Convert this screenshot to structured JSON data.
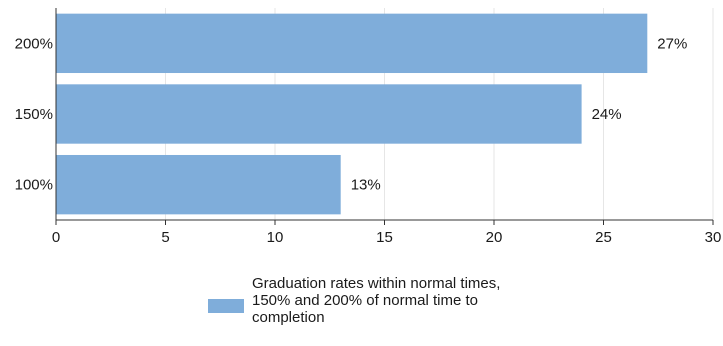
{
  "chart_data": {
    "type": "bar",
    "orientation": "horizontal",
    "categories": [
      "200%",
      "150%",
      "100%"
    ],
    "series": [
      {
        "name": "Graduation rates within normal times, 150% and 200% of normal time to completion",
        "values": [
          27,
          24,
          13
        ],
        "labels": [
          "27%",
          "24%",
          "13%"
        ],
        "color": "#7fadda"
      }
    ],
    "xticks": [
      "0",
      "5",
      "10",
      "15",
      "20",
      "25",
      "30"
    ],
    "xlim": [
      0,
      30
    ],
    "title": "",
    "xlabel": "",
    "ylabel": "",
    "grid": "vertical",
    "legend_position": "bottom-center"
  }
}
